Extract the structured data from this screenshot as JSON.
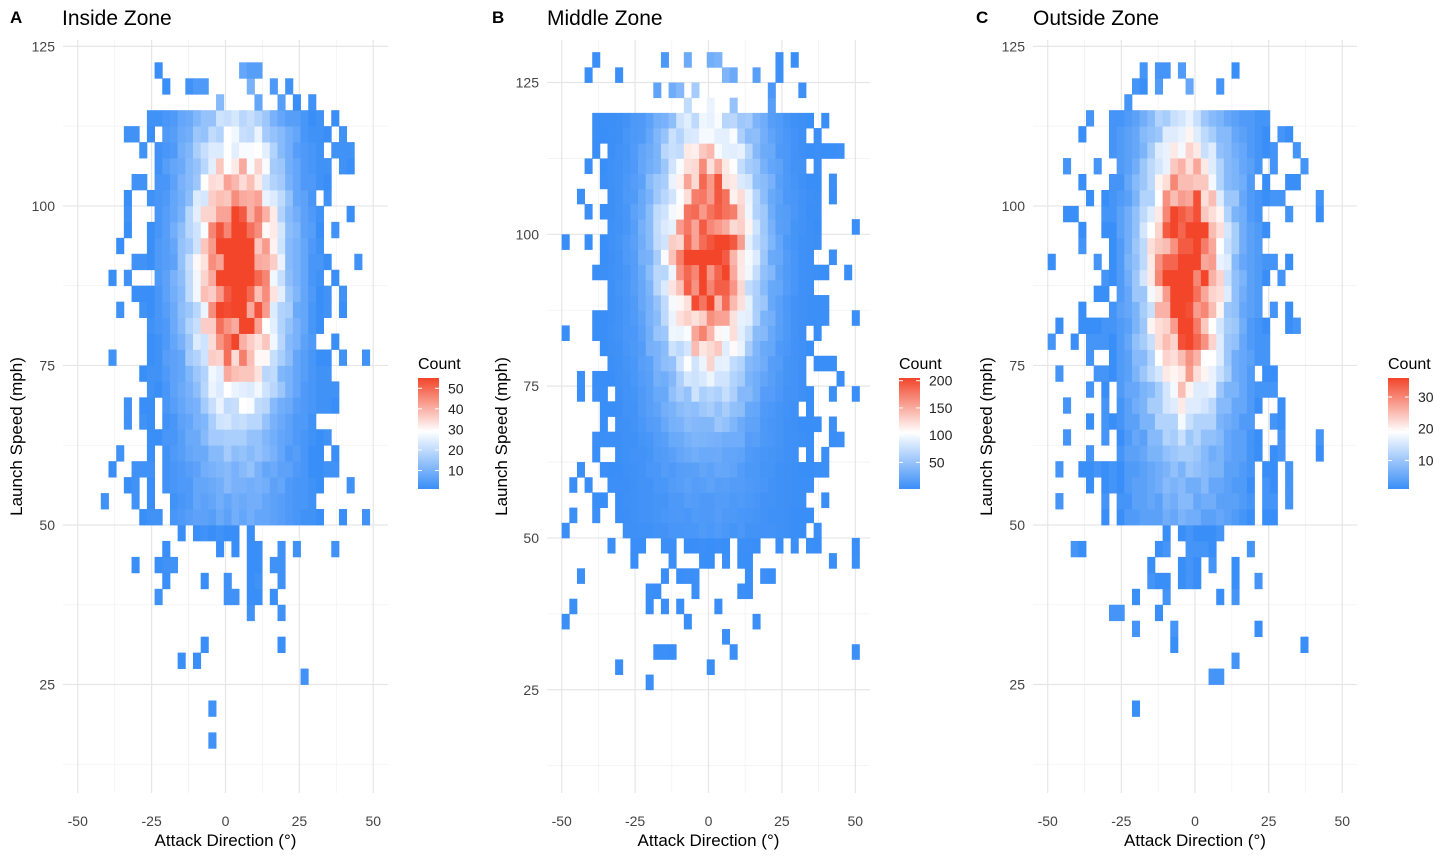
{
  "chart_data": [
    {
      "type": "heatmap",
      "panel_label": "A",
      "title": "Inside Zone",
      "xlabel": "Attack Direction (°)",
      "ylabel": "Launch Speed (mph)",
      "xlim": [
        -55,
        55
      ],
      "ylim": [
        8,
        126
      ],
      "x_ticks": [
        -50,
        -25,
        0,
        25,
        50
      ],
      "y_ticks": [
        25,
        50,
        75,
        100,
        125
      ],
      "legend_title": "Count",
      "legend_ticks": [
        10,
        20,
        30,
        40,
        50
      ],
      "count_max": 55,
      "count_mid": 29,
      "bin_width_x": 2.6,
      "bin_height_y": 2.5,
      "density": {
        "center_x": 4,
        "center_y": 90,
        "sigma_x": 10,
        "sigma_y": 15,
        "peak": 55,
        "tail_cap": 4,
        "tail_prob": 0.35,
        "x_tail_sigma": 16
      },
      "colors": {
        "low": "#3a8ef7",
        "mid": "#ffffff",
        "high": "#f2452a"
      },
      "grid": true
    },
    {
      "type": "heatmap",
      "panel_label": "B",
      "title": "Middle Zone",
      "xlabel": "Attack Direction (°)",
      "ylabel": "Launch Speed (mph)",
      "xlim": [
        -55,
        55
      ],
      "ylim": [
        8,
        132
      ],
      "x_ticks": [
        -50,
        -25,
        0,
        25,
        50
      ],
      "y_ticks": [
        25,
        50,
        75,
        100,
        125
      ],
      "legend_title": "Count",
      "legend_ticks": [
        50,
        100,
        150,
        200
      ],
      "count_max": 205,
      "count_mid": 105,
      "bin_width_x": 2.6,
      "bin_height_y": 2.5,
      "density": {
        "center_x": 0,
        "center_y": 98,
        "sigma_x": 11,
        "sigma_y": 16,
        "peak": 205,
        "tail_cap": 5,
        "tail_prob": 0.4,
        "x_tail_sigma": 18
      },
      "colors": {
        "low": "#3a8ef7",
        "mid": "#ffffff",
        "high": "#f2452a"
      },
      "grid": true
    },
    {
      "type": "heatmap",
      "panel_label": "C",
      "title": "Outside Zone",
      "xlabel": "Attack Direction (°)",
      "ylabel": "Launch Speed (mph)",
      "xlim": [
        -55,
        55
      ],
      "ylim": [
        8,
        126
      ],
      "x_ticks": [
        -50,
        -25,
        0,
        25,
        50
      ],
      "y_ticks": [
        25,
        50,
        75,
        100,
        125
      ],
      "legend_title": "Count",
      "legend_ticks": [
        10,
        20,
        30
      ],
      "count_max": 36,
      "count_mid": 19,
      "bin_width_x": 2.6,
      "bin_height_y": 2.5,
      "density": {
        "center_x": -3,
        "center_y": 90,
        "sigma_x": 9,
        "sigma_y": 15,
        "peak": 36,
        "tail_cap": 3,
        "tail_prob": 0.32,
        "x_tail_sigma": 17
      },
      "colors": {
        "low": "#3a8ef7",
        "mid": "#ffffff",
        "high": "#f2452a"
      },
      "grid": true
    }
  ]
}
